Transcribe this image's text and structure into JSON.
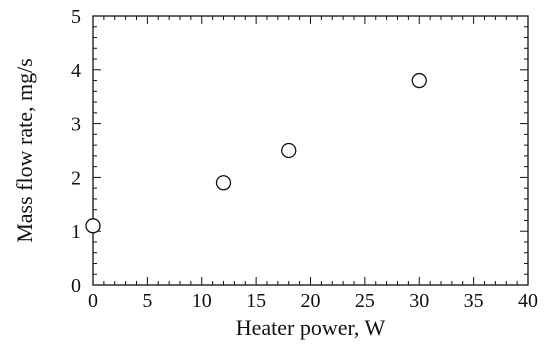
{
  "chart_data": {
    "type": "scatter",
    "title": "",
    "xlabel": "Heater power, W",
    "ylabel": "Mass flow rate, mg/s",
    "xlim": [
      0,
      40
    ],
    "ylim": [
      0,
      5
    ],
    "xticks": [
      0,
      5,
      10,
      15,
      20,
      25,
      30,
      35,
      40
    ],
    "yticks": [
      0,
      1,
      2,
      3,
      4,
      5
    ],
    "xtick_labels": [
      "0",
      "5",
      "10",
      "15",
      "20",
      "25",
      "30",
      "35",
      "40"
    ],
    "ytick_labels": [
      "0",
      "1",
      "2",
      "3",
      "4",
      "5"
    ],
    "grid": false,
    "legend": "none",
    "marker": "open-circle",
    "series": [
      {
        "x": [
          0,
          12,
          18,
          30
        ],
        "y": [
          1.1,
          1.9,
          2.5,
          3.8
        ]
      }
    ]
  }
}
